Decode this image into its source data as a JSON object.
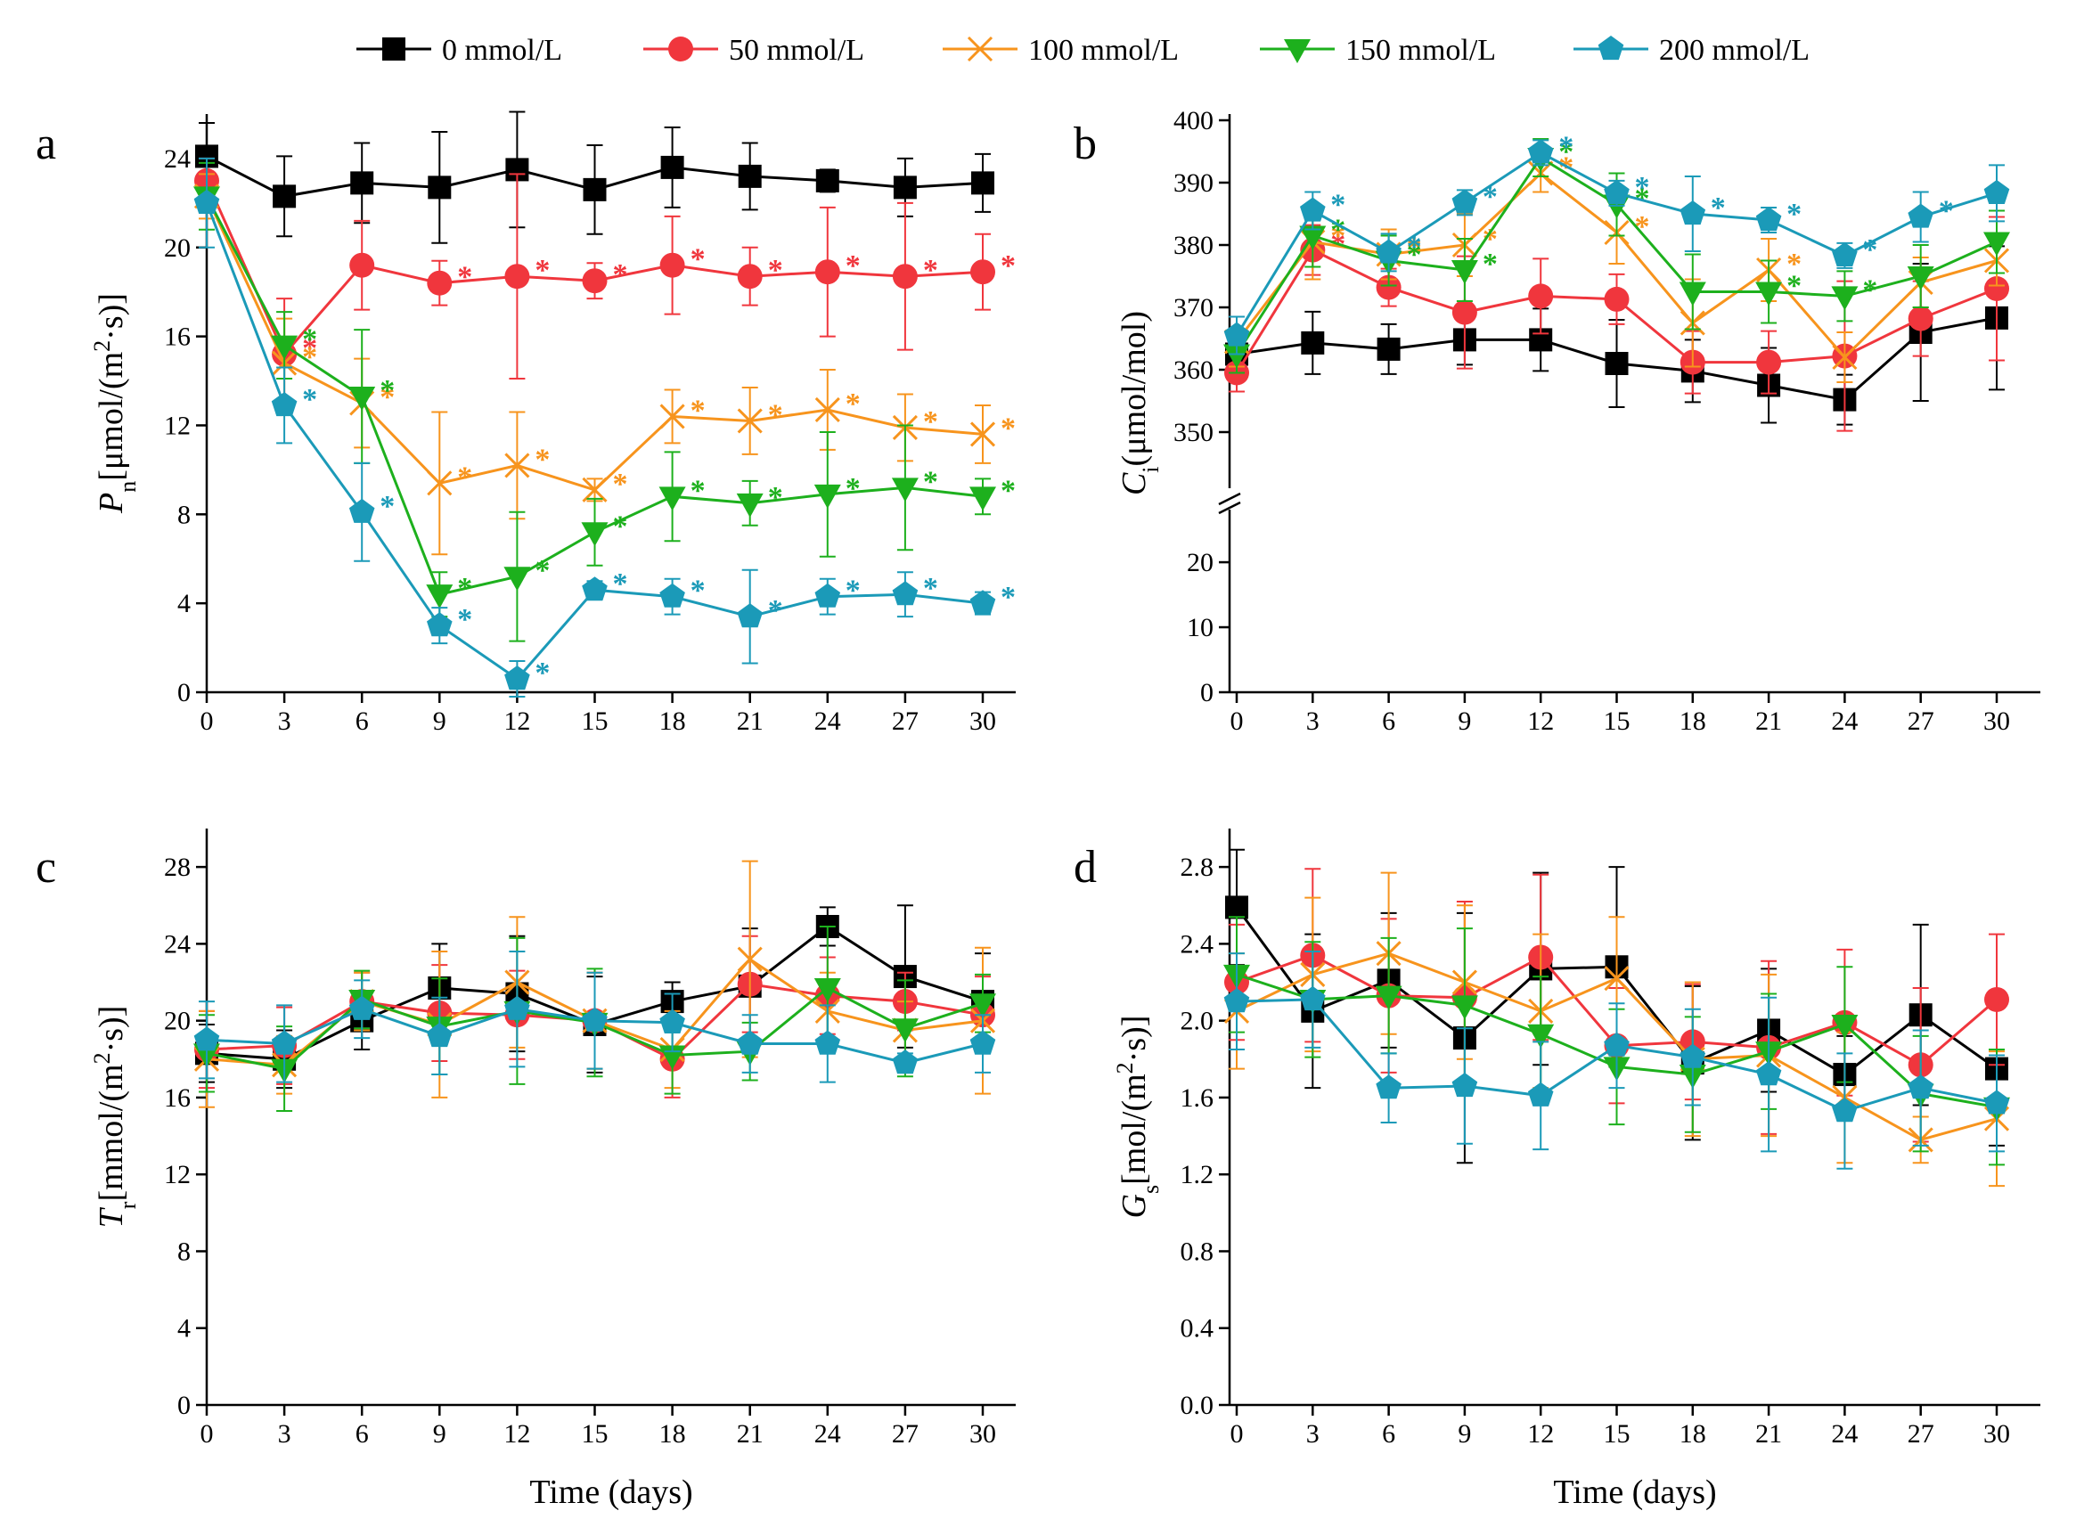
{
  "legend": {
    "entries": [
      {
        "label": "0 mmol/L",
        "color": "#000000",
        "marker": "square"
      },
      {
        "label": "50 mmol/L",
        "color": "#f0363d",
        "marker": "circle"
      },
      {
        "label": "100 mmol/L",
        "color": "#f7941d",
        "marker": "cross"
      },
      {
        "label": "150 mmol/L",
        "color": "#1db01d",
        "marker": "triangle-down"
      },
      {
        "label": "200 mmol/L",
        "color": "#1b9ab8",
        "marker": "pentagon"
      }
    ]
  },
  "chart_data": [
    {
      "panel": "a",
      "type": "line",
      "ylabel": {
        "main": "P",
        "sub": "n",
        "rest": "[μmol/(m",
        "sup": "2",
        "end": "·s)]"
      },
      "xlabel": "",
      "x": [
        0,
        3,
        6,
        9,
        12,
        15,
        18,
        21,
        24,
        27,
        30
      ],
      "xticks": [
        "0",
        "3",
        "6",
        "9",
        "12",
        "15",
        "18",
        "21",
        "24",
        "27",
        "30"
      ],
      "ylim": [
        0,
        26
      ],
      "yticks": [
        "0",
        "4",
        "8",
        "12",
        "16",
        "20",
        "24"
      ],
      "star": "*",
      "series": [
        {
          "name": "0 mmol/L",
          "values": [
            24.1,
            22.3,
            22.9,
            22.7,
            23.5,
            22.6,
            23.6,
            23.2,
            23.0,
            22.7,
            22.9
          ],
          "err": [
            1.5,
            1.8,
            1.8,
            2.5,
            2.6,
            2.0,
            1.8,
            1.5,
            0.5,
            1.3,
            1.3
          ],
          "stars": []
        },
        {
          "name": "50 mmol/L",
          "values": [
            23.0,
            15.2,
            19.2,
            18.4,
            18.7,
            18.5,
            19.2,
            18.7,
            18.9,
            18.7,
            18.9
          ],
          "err": [
            1.0,
            2.5,
            2.0,
            1.0,
            4.6,
            0.8,
            2.2,
            1.3,
            2.9,
            3.3,
            1.7
          ],
          "stars": [
            1,
            3,
            4,
            5,
            6,
            7,
            8,
            9,
            10
          ]
        },
        {
          "name": "100 mmol/L",
          "values": [
            22.3,
            14.8,
            13.0,
            9.4,
            10.2,
            9.1,
            12.4,
            12.2,
            12.7,
            11.9,
            11.6
          ],
          "err": [
            1.0,
            2.0,
            2.0,
            3.2,
            2.4,
            0.5,
            1.2,
            1.5,
            1.8,
            1.5,
            1.3
          ],
          "stars": [
            1,
            2,
            3,
            4,
            5,
            6,
            7,
            8,
            9,
            10
          ]
        },
        {
          "name": "150 mmol/L",
          "values": [
            22.3,
            15.6,
            13.3,
            4.4,
            5.2,
            7.2,
            8.8,
            8.5,
            8.9,
            9.2,
            8.8
          ],
          "err": [
            1.5,
            1.5,
            3.0,
            1.0,
            2.9,
            1.5,
            2.0,
            1.0,
            2.8,
            2.8,
            0.8
          ],
          "stars": [
            1,
            2,
            3,
            4,
            5,
            6,
            7,
            8,
            9,
            10
          ]
        },
        {
          "name": "200 mmol/L",
          "values": [
            22.0,
            12.9,
            8.1,
            3.0,
            0.6,
            4.6,
            4.3,
            3.4,
            4.3,
            4.4,
            4.0
          ],
          "err": [
            2.0,
            1.7,
            2.2,
            0.8,
            0.8,
            0.4,
            0.8,
            2.1,
            0.8,
            1.0,
            0.5
          ],
          "stars": [
            1,
            2,
            3,
            4,
            5,
            6,
            7,
            8,
            9,
            10
          ]
        }
      ]
    },
    {
      "panel": "b",
      "type": "line",
      "ylabel": {
        "main": "C",
        "sub": "i",
        "rest": "(μmol/mol)",
        "sup": "",
        "end": ""
      },
      "xlabel": "",
      "x": [
        0,
        3,
        6,
        9,
        12,
        15,
        18,
        21,
        24,
        27,
        30
      ],
      "xticks": [
        "0",
        "3",
        "6",
        "9",
        "12",
        "15",
        "18",
        "21",
        "24",
        "27",
        "30"
      ],
      "axis_break": true,
      "lower_range": [
        0,
        27
      ],
      "upper_range": [
        345,
        401
      ],
      "yticks_lower": [
        "0",
        "10",
        "20"
      ],
      "yticks_upper": [
        "350",
        "360",
        "370",
        "380",
        "390",
        "400"
      ],
      "star": "*",
      "series": [
        {
          "name": "0 mmol/L",
          "values": [
            362.5,
            364.3,
            363.3,
            364.8,
            364.8,
            361.0,
            359.8,
            357.5,
            355.2,
            366.0,
            368.3
          ],
          "err": [
            3.0,
            5.0,
            4.0,
            4.0,
            5.0,
            7.0,
            5.0,
            6.0,
            4.0,
            11.0,
            11.5
          ],
          "stars": []
        },
        {
          "name": "50 mmol/L",
          "values": [
            359.5,
            379.2,
            373.2,
            369.2,
            371.8,
            371.3,
            361.2,
            361.2,
            362.2,
            368.2,
            373.0
          ],
          "err": [
            3.0,
            4.0,
            3.0,
            9.0,
            6.0,
            4.0,
            5.0,
            5.0,
            12.0,
            6.0,
            11.5
          ],
          "stars": [
            1
          ]
        },
        {
          "name": "100 mmol/L",
          "values": [
            364.5,
            380.5,
            378.5,
            380.0,
            391.5,
            382.0,
            367.5,
            376.0,
            362.0,
            374.0,
            377.5
          ],
          "err": [
            4.0,
            6.0,
            4.0,
            5.0,
            3.0,
            5.0,
            7.0,
            5.0,
            4.0,
            4.0,
            4.0
          ],
          "stars": [
            1,
            2,
            3,
            4,
            5,
            7
          ]
        },
        {
          "name": "150 mmol/L",
          "values": [
            362.5,
            381.5,
            377.5,
            376.0,
            394.0,
            386.5,
            372.5,
            372.5,
            371.8,
            375.0,
            380.5
          ],
          "err": [
            3.0,
            5.0,
            4.0,
            5.0,
            3.0,
            5.0,
            6.0,
            5.0,
            4.0,
            5.0,
            5.0
          ],
          "stars": [
            1,
            2,
            3,
            4,
            5,
            7,
            8
          ]
        },
        {
          "name": "200 mmol/L",
          "values": [
            365.5,
            385.5,
            378.8,
            386.8,
            394.8,
            388.3,
            385.0,
            384.0,
            378.3,
            384.5,
            388.3
          ],
          "err": [
            3.0,
            3.0,
            3.0,
            2.0,
            2.0,
            2.0,
            6.0,
            2.0,
            2.0,
            4.0,
            4.5
          ],
          "stars": [
            1,
            2,
            3,
            4,
            5,
            6,
            7,
            8,
            9
          ]
        }
      ]
    },
    {
      "panel": "c",
      "type": "line",
      "ylabel": {
        "main": "T",
        "sub": "r",
        "rest": "[mmol/(m",
        "sup": "2",
        "end": "·s)]"
      },
      "xlabel": "Time (days)",
      "x": [
        0,
        3,
        6,
        9,
        12,
        15,
        18,
        21,
        24,
        27,
        30
      ],
      "xticks": [
        "0",
        "3",
        "6",
        "9",
        "12",
        "15",
        "18",
        "21",
        "24",
        "27",
        "30"
      ],
      "ylim": [
        0,
        30
      ],
      "yticks": [
        "0",
        "4",
        "8",
        "12",
        "16",
        "20",
        "24",
        "28"
      ],
      "star": "",
      "series": [
        {
          "name": "0 mmol/L",
          "values": [
            18.3,
            18.0,
            20.0,
            21.7,
            21.4,
            19.8,
            21.0,
            21.8,
            24.9,
            22.3,
            21.0
          ],
          "err": [
            1.5,
            1.5,
            1.5,
            2.3,
            3.0,
            2.5,
            1.0,
            3.0,
            1.0,
            3.7,
            2.5
          ],
          "stars": []
        },
        {
          "name": "50 mmol/L",
          "values": [
            18.5,
            18.7,
            21.0,
            20.4,
            20.3,
            20.0,
            18.0,
            21.9,
            21.3,
            21.0,
            20.3
          ],
          "err": [
            2.0,
            2.0,
            1.5,
            2.5,
            2.3,
            2.5,
            2.0,
            2.5,
            2.0,
            1.5,
            2.0
          ],
          "stars": []
        },
        {
          "name": "100 mmol/L",
          "values": [
            18.0,
            17.7,
            21.0,
            19.8,
            22.0,
            20.0,
            18.5,
            23.2,
            20.5,
            19.5,
            20.0
          ],
          "err": [
            2.5,
            1.5,
            1.5,
            3.8,
            3.4,
            2.5,
            2.0,
            5.1,
            2.0,
            1.5,
            3.8
          ],
          "stars": []
        },
        {
          "name": "150 mmol/L",
          "values": [
            18.3,
            17.5,
            21.1,
            19.7,
            20.5,
            19.9,
            18.2,
            18.4,
            21.7,
            19.6,
            20.9
          ],
          "err": [
            2.0,
            2.2,
            1.5,
            2.5,
            3.8,
            2.8,
            2.0,
            1.5,
            3.2,
            2.5,
            1.5
          ],
          "stars": []
        },
        {
          "name": "200 mmol/L",
          "values": [
            19.0,
            18.8,
            20.6,
            19.2,
            20.6,
            20.0,
            19.9,
            18.8,
            18.8,
            17.8,
            18.8
          ],
          "err": [
            2.0,
            2.0,
            1.5,
            2.0,
            3.0,
            2.5,
            1.5,
            1.5,
            2.0,
            0.5,
            1.5
          ],
          "stars": []
        }
      ]
    },
    {
      "panel": "d",
      "type": "line",
      "ylabel": {
        "main": "G",
        "sub": "s",
        "rest": "[mol/(m",
        "sup": "2",
        "end": "·s)]"
      },
      "xlabel": "Time (days)",
      "x": [
        0,
        3,
        6,
        9,
        12,
        15,
        18,
        21,
        24,
        27,
        30
      ],
      "xticks": [
        "0",
        "3",
        "6",
        "9",
        "12",
        "15",
        "18",
        "21",
        "24",
        "27",
        "30"
      ],
      "ylim": [
        0,
        3.0
      ],
      "yticks": [
        "0.0",
        "0.4",
        "0.8",
        "1.2",
        "1.6",
        "2.0",
        "2.4",
        "2.8"
      ],
      "star": "",
      "series": [
        {
          "name": "0 mmol/L",
          "values": [
            2.59,
            2.05,
            2.21,
            1.91,
            2.27,
            2.28,
            1.78,
            1.95,
            1.72,
            2.03,
            1.75
          ],
          "err": [
            0.3,
            0.4,
            0.35,
            0.65,
            0.5,
            0.52,
            0.4,
            0.32,
            0.2,
            0.47,
            0.4
          ],
          "stars": []
        },
        {
          "name": "50 mmol/L",
          "values": [
            2.2,
            2.34,
            2.13,
            2.12,
            2.33,
            1.87,
            1.89,
            1.86,
            1.99,
            1.77,
            2.11
          ],
          "err": [
            0.3,
            0.45,
            0.4,
            0.5,
            0.43,
            0.3,
            0.3,
            0.45,
            0.38,
            0.4,
            0.34
          ]
        },
        {
          "name": "100 mmol/L",
          "values": [
            2.05,
            2.24,
            2.35,
            2.2,
            2.05,
            2.22,
            1.8,
            1.82,
            1.6,
            1.38,
            1.49
          ],
          "err": [
            0.3,
            0.4,
            0.42,
            0.4,
            0.4,
            0.32,
            0.4,
            0.42,
            0.34,
            0.12,
            0.35
          ],
          "stars": []
        },
        {
          "name": "150 mmol/L",
          "values": [
            2.24,
            2.11,
            2.13,
            2.08,
            1.93,
            1.76,
            1.72,
            1.84,
            1.98,
            1.62,
            1.55
          ],
          "err": [
            0.3,
            0.3,
            0.3,
            0.4,
            0.3,
            0.3,
            0.3,
            0.3,
            0.3,
            0.3,
            0.3
          ],
          "stars": []
        },
        {
          "name": "200 mmol/L",
          "values": [
            2.1,
            2.11,
            1.65,
            1.66,
            1.61,
            1.87,
            1.81,
            1.72,
            1.53,
            1.65,
            1.57
          ],
          "err": [
            0.25,
            0.25,
            0.18,
            0.3,
            0.28,
            0.22,
            0.25,
            0.4,
            0.3,
            0.3,
            0.25
          ],
          "stars": []
        }
      ]
    }
  ]
}
